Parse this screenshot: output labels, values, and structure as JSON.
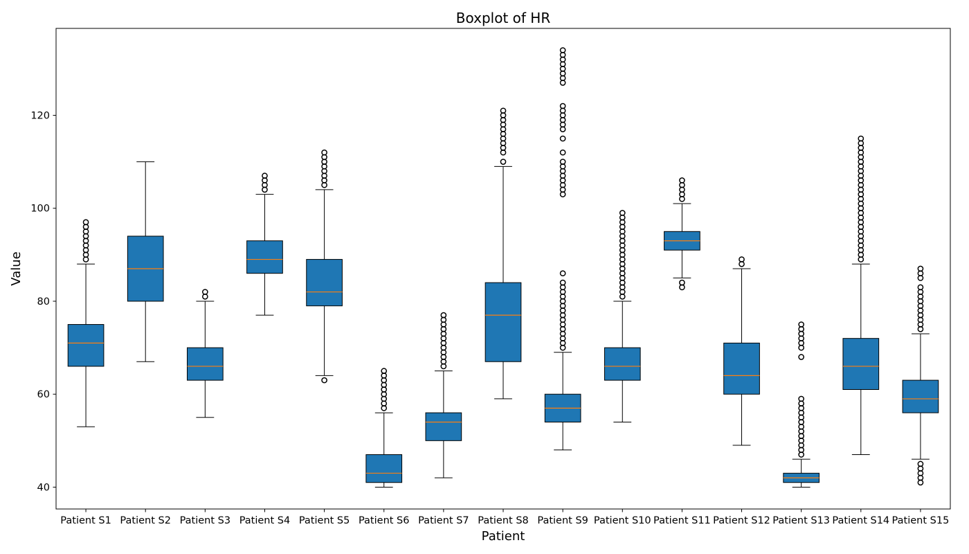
{
  "chart_data": {
    "type": "boxplot",
    "title": "Boxplot of HR",
    "xlabel": "Patient",
    "ylabel": "Value",
    "ylim": [
      35.3,
      138.7
    ],
    "yticks": [
      40,
      60,
      80,
      100,
      120
    ],
    "colors": {
      "box_fill": "#1f77b4",
      "median": "#ff7f0e",
      "edge": "#000000"
    },
    "categories": [
      "Patient S1",
      "Patient S2",
      "Patient S3",
      "Patient S4",
      "Patient S5",
      "Patient S6",
      "Patient S7",
      "Patient S8",
      "Patient S9",
      "Patient S10",
      "Patient S11",
      "Patient S12",
      "Patient S13",
      "Patient S14",
      "Patient S15"
    ],
    "boxes": [
      {
        "whislo": 53,
        "q1": 66,
        "med": 71,
        "q3": 75,
        "whishi": 88,
        "fliers": [
          89,
          90,
          91,
          92,
          93,
          94,
          95,
          96,
          97
        ]
      },
      {
        "whislo": 67,
        "q1": 80,
        "med": 87,
        "q3": 94,
        "whishi": 110,
        "fliers": []
      },
      {
        "whislo": 55,
        "q1": 63,
        "med": 66,
        "q3": 70,
        "whishi": 80,
        "fliers": [
          81,
          82
        ]
      },
      {
        "whislo": 77,
        "q1": 86,
        "med": 89,
        "q3": 93,
        "whishi": 103,
        "fliers": [
          104,
          105,
          106,
          107
        ]
      },
      {
        "whislo": 64,
        "q1": 79,
        "med": 82,
        "q3": 89,
        "whishi": 104,
        "fliers": [
          63,
          105,
          106,
          107,
          108,
          109,
          110,
          111,
          112
        ]
      },
      {
        "whislo": 40,
        "q1": 41,
        "med": 43,
        "q3": 47,
        "whishi": 56,
        "fliers": [
          57,
          58,
          59,
          60,
          61,
          62,
          63,
          64,
          65
        ]
      },
      {
        "whislo": 42,
        "q1": 50,
        "med": 54,
        "q3": 56,
        "whishi": 65,
        "fliers": [
          66,
          67,
          68,
          69,
          70,
          71,
          72,
          73,
          74,
          75,
          76,
          77
        ]
      },
      {
        "whislo": 59,
        "q1": 67,
        "med": 77,
        "q3": 84,
        "whishi": 109,
        "fliers": [
          110,
          112,
          113,
          114,
          115,
          116,
          117,
          118,
          119,
          120,
          121
        ]
      },
      {
        "whislo": 48,
        "q1": 54,
        "med": 57,
        "q3": 60,
        "whishi": 69,
        "fliers": [
          70,
          71,
          72,
          73,
          74,
          75,
          76,
          77,
          78,
          79,
          80,
          81,
          82,
          83,
          84,
          86,
          103,
          104,
          105,
          106,
          107,
          108,
          109,
          110,
          112,
          115,
          117,
          118,
          119,
          120,
          121,
          122,
          127,
          128,
          129,
          130,
          131,
          132,
          133,
          134
        ]
      },
      {
        "whislo": 54,
        "q1": 63,
        "med": 66,
        "q3": 70,
        "whishi": 80,
        "fliers": [
          81,
          82,
          83,
          84,
          85,
          86,
          87,
          88,
          89,
          90,
          91,
          92,
          93,
          94,
          95,
          96,
          97,
          98,
          99
        ]
      },
      {
        "whislo": 85,
        "q1": 91,
        "med": 93,
        "q3": 95,
        "whishi": 101,
        "fliers": [
          83,
          84,
          102,
          103,
          104,
          105,
          106
        ]
      },
      {
        "whislo": 49,
        "q1": 60,
        "med": 64,
        "q3": 71,
        "whishi": 87,
        "fliers": [
          88,
          89
        ]
      },
      {
        "whislo": 40,
        "q1": 41,
        "med": 42,
        "q3": 43,
        "whishi": 46,
        "fliers": [
          47,
          48,
          49,
          50,
          51,
          52,
          53,
          54,
          55,
          56,
          57,
          58,
          59,
          68,
          70,
          71,
          72,
          73,
          74,
          75
        ]
      },
      {
        "whislo": 47,
        "q1": 61,
        "med": 66,
        "q3": 72,
        "whishi": 88,
        "fliers": [
          89,
          90,
          91,
          92,
          93,
          94,
          95,
          96,
          97,
          98,
          99,
          100,
          101,
          102,
          103,
          104,
          105,
          106,
          107,
          108,
          109,
          110,
          111,
          112,
          113,
          114,
          115
        ]
      },
      {
        "whislo": 46,
        "q1": 56,
        "med": 59,
        "q3": 63,
        "whishi": 73,
        "fliers": [
          41,
          42,
          43,
          44,
          45,
          74,
          75,
          76,
          77,
          78,
          79,
          80,
          81,
          82,
          83,
          85,
          86,
          87
        ]
      }
    ]
  }
}
